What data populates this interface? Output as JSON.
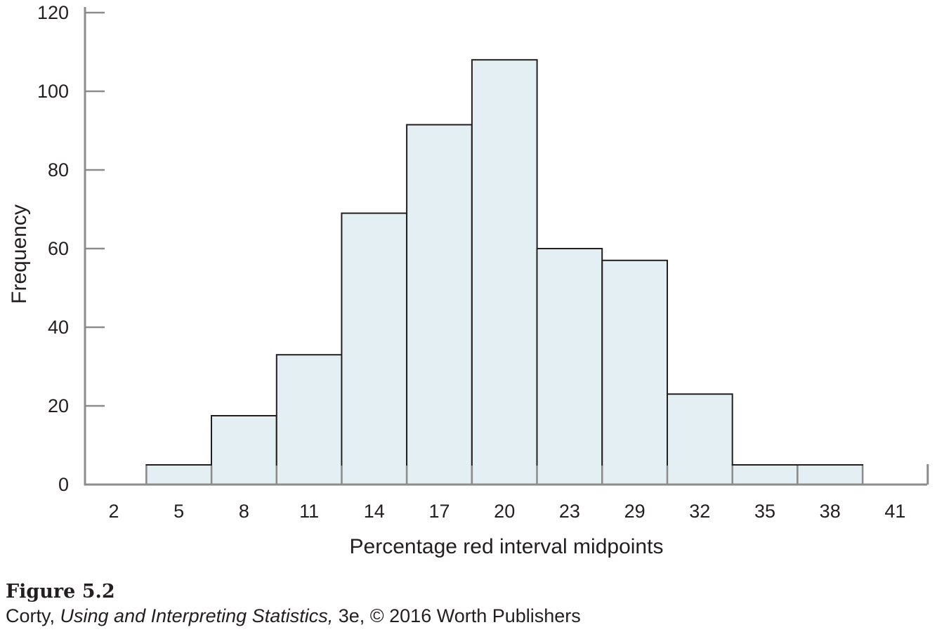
{
  "chart_data": {
    "type": "bar",
    "categories": [
      "2",
      "5",
      "8",
      "11",
      "14",
      "17",
      "20",
      "23",
      "29",
      "32",
      "35",
      "38",
      "41"
    ],
    "values": [
      0,
      5,
      17.5,
      33,
      69,
      91.5,
      108,
      60,
      57,
      23,
      5,
      5,
      0
    ],
    "xlabel": "Percentage red interval midpoints",
    "ylabel": "Frequency",
    "ylim": [
      0,
      120
    ],
    "yticks": [
      0,
      20,
      40,
      60,
      80,
      100,
      120
    ],
    "grid": false,
    "colors": {
      "bar_fill": "#e4eff3",
      "bar_stroke": "#231f20",
      "axis": "#8c8c8c",
      "text": "#231f20"
    }
  },
  "caption": {
    "figure_number": "Figure 5.2",
    "author": "Corty, ",
    "book_title": "Using and Interpreting Statistics,",
    "edition_rest": " 3e, © 2016 Worth Publishers"
  }
}
